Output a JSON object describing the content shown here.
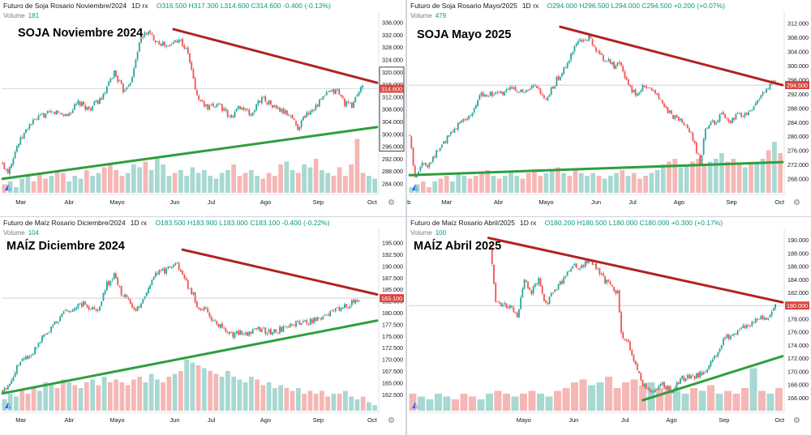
{
  "colors": {
    "up": "#26a69a",
    "down": "#ef5350",
    "vol_up": "#a8d8d2",
    "vol_down": "#f5b7b5",
    "resistance": "#b22222",
    "support": "#2e9e3e",
    "axis_text": "#131722",
    "price_label": "#d9463e",
    "grid": "#f0f3fa"
  },
  "charts": [
    {
      "id": "soja-nov",
      "symbol": "Futuro de Soja Rosario Noviembre/2024",
      "interval": "1D",
      "source": "rx",
      "ohlc": {
        "o": "O316.500",
        "h": "H317.300",
        "l": "L314.600",
        "c": "C314.600",
        "chg": "-0.400 (-0.13%)"
      },
      "volume_label": "Volume",
      "volume_value": "181",
      "annotation": "SOJA Noviembre 2024",
      "chart_data": {
        "type": "candlestick",
        "ylim": [
          281,
          338
        ],
        "yticks": [
          "336.000",
          "332.000",
          "328.000",
          "324.000",
          "320.000",
          "316.000",
          "312.000",
          "308.000",
          "304.000",
          "300.000",
          "296.000",
          "292.000",
          "288.000",
          "284.000"
        ],
        "months": [
          "Mar",
          "Abr",
          "Mayo",
          "Jun",
          "Jul",
          "Ago",
          "Sep",
          "Oct"
        ],
        "last_price": "314.600",
        "last_value": 314.6,
        "boxed_ticks": [
          "320.000",
          "316.000",
          "312.000",
          "308.000",
          "304.000",
          "300.000",
          "296.000"
        ],
        "anchors": [
          [
            0,
            290
          ],
          [
            3,
            288
          ],
          [
            8,
            296
          ],
          [
            15,
            303
          ],
          [
            22,
            306
          ],
          [
            30,
            307
          ],
          [
            36,
            306
          ],
          [
            42,
            310
          ],
          [
            48,
            308
          ],
          [
            56,
            312
          ],
          [
            62,
            320
          ],
          [
            67,
            314
          ],
          [
            72,
            318
          ],
          [
            76,
            330
          ],
          [
            80,
            333
          ],
          [
            86,
            330
          ],
          [
            92,
            328
          ],
          [
            98,
            331
          ],
          [
            103,
            326
          ],
          [
            108,
            312
          ],
          [
            114,
            308
          ],
          [
            120,
            310
          ],
          [
            126,
            305
          ],
          [
            132,
            309
          ],
          [
            138,
            306
          ],
          [
            144,
            312
          ],
          [
            150,
            309
          ],
          [
            156,
            307
          ],
          [
            160,
            306
          ],
          [
            164,
            302
          ],
          [
            168,
            306
          ],
          [
            174,
            309
          ],
          [
            180,
            313
          ],
          [
            186,
            314
          ],
          [
            190,
            310
          ],
          [
            194,
            309
          ],
          [
            197,
            313
          ],
          [
            200,
            315
          ]
        ],
        "volume_heights": [
          0.15,
          0.2,
          0.1,
          0.25,
          0.3,
          0.2,
          0.35,
          0.25,
          0.3,
          0.4,
          0.35,
          0.2,
          0.3,
          0.25,
          0.4,
          0.3,
          0.35,
          0.45,
          0.5,
          0.4,
          0.3,
          0.35,
          0.5,
          0.45,
          0.55,
          0.4,
          0.6,
          0.5,
          0.3,
          0.35,
          0.4,
          0.3,
          0.45,
          0.35,
          0.4,
          0.3,
          0.25,
          0.35,
          0.4,
          0.5,
          0.3,
          0.35,
          0.4,
          0.3,
          0.25,
          0.35,
          0.3,
          0.5,
          0.55,
          0.4,
          0.35,
          0.5,
          0.45,
          0.6,
          0.4,
          0.35,
          0.3,
          0.45,
          0.3,
          0.5,
          0.95,
          0.35,
          0.3,
          0.25
        ],
        "resistance": [
          [
            95,
            333.8
          ],
          [
            208,
            316.5
          ]
        ],
        "support": [
          [
            0,
            285.5
          ],
          [
            208,
            302.2
          ]
        ],
        "months_pos": [
          0.05,
          0.18,
          0.3,
          0.46,
          0.56,
          0.7,
          0.84,
          0.985
        ]
      }
    },
    {
      "id": "soja-may",
      "symbol": "Futuro de Soja Rosario Mayo/2025",
      "interval": "1D",
      "source": "rx",
      "ohlc": {
        "o": "O294.000",
        "h": "H296.500",
        "l": "L294.000",
        "c": "C294.500",
        "chg": "+0.200 (+0.07%)"
      },
      "volume_label": "Volume",
      "volume_value": "479",
      "annotation": "SOJA Mayo 2025",
      "chart_data": {
        "type": "candlestick",
        "ylim": [
          264,
          314
        ],
        "yticks": [
          "312.000",
          "308.000",
          "304.000",
          "300.000",
          "296.000",
          "292.000",
          "288.000",
          "284.000",
          "280.000",
          "276.000",
          "272.000",
          "268.000"
        ],
        "months": [
          "eb",
          "Mar",
          "Abr",
          "Mayo",
          "Jun",
          "Jul",
          "Ago",
          "Sep",
          "Oct"
        ],
        "last_price": "294.500",
        "last_value": 294.5,
        "boxed_ticks": [],
        "anchors": [
          [
            0,
            280
          ],
          [
            3,
            268
          ],
          [
            6,
            272
          ],
          [
            10,
            272
          ],
          [
            16,
            276
          ],
          [
            22,
            280
          ],
          [
            28,
            284
          ],
          [
            34,
            286
          ],
          [
            40,
            292
          ],
          [
            46,
            292
          ],
          [
            52,
            292
          ],
          [
            58,
            294
          ],
          [
            64,
            292
          ],
          [
            70,
            294
          ],
          [
            76,
            290
          ],
          [
            82,
            296
          ],
          [
            88,
            300
          ],
          [
            92,
            306
          ],
          [
            96,
            307
          ],
          [
            100,
            308
          ],
          [
            104,
            304
          ],
          [
            108,
            302
          ],
          [
            114,
            300
          ],
          [
            118,
            300
          ],
          [
            122,
            294
          ],
          [
            126,
            292
          ],
          [
            130,
            294
          ],
          [
            134,
            294
          ],
          [
            140,
            290
          ],
          [
            146,
            286
          ],
          [
            152,
            284
          ],
          [
            156,
            282
          ],
          [
            160,
            276
          ],
          [
            162,
            272
          ],
          [
            165,
            282
          ],
          [
            170,
            284
          ],
          [
            174,
            286
          ],
          [
            178,
            284
          ],
          [
            182,
            286
          ],
          [
            188,
            286
          ],
          [
            194,
            290
          ],
          [
            200,
            294
          ],
          [
            204,
            296
          ]
        ],
        "volume_heights": [
          0.1,
          0.15,
          0.2,
          0.1,
          0.2,
          0.25,
          0.3,
          0.2,
          0.35,
          0.3,
          0.25,
          0.3,
          0.35,
          0.4,
          0.3,
          0.25,
          0.3,
          0.35,
          0.3,
          0.25,
          0.35,
          0.4,
          0.3,
          0.35,
          0.4,
          0.45,
          0.35,
          0.3,
          0.4,
          0.35,
          0.3,
          0.35,
          0.3,
          0.25,
          0.3,
          0.35,
          0.4,
          0.3,
          0.35,
          0.25,
          0.3,
          0.35,
          0.4,
          0.5,
          0.55,
          0.6,
          0.45,
          0.5,
          0.55,
          0.6,
          0.5,
          0.55,
          0.6,
          0.7,
          0.55,
          0.6,
          0.5,
          0.45,
          0.5,
          0.55,
          0.6,
          0.75,
          0.9,
          0.7
        ],
        "resistance": [
          [
            84,
            311
          ],
          [
            208,
            294.5
          ]
        ],
        "support": [
          [
            0,
            269
          ],
          [
            208,
            272.7
          ]
        ],
        "months_pos": [
          0.0,
          0.1,
          0.24,
          0.36,
          0.5,
          0.6,
          0.72,
          0.86,
          0.99
        ]
      }
    },
    {
      "id": "maiz-dic",
      "symbol": "Futuro de Maíz Rosario Diciembre/2024",
      "interval": "1D",
      "source": "rx",
      "ohlc": {
        "o": "O183.500",
        "h": "H183.900",
        "l": "L183.000",
        "c": "C183.100",
        "chg": "-0.400 (-0.22%)"
      },
      "volume_label": "Volume",
      "volume_value": "104",
      "annotation": "MAÍZ Diciembre 2024",
      "chart_data": {
        "type": "candlestick",
        "ylim": [
          159,
          197
        ],
        "yticks": [
          "195.000",
          "192.500",
          "190.000",
          "187.500",
          "185.000",
          "182.500",
          "180.000",
          "177.500",
          "175.000",
          "172.500",
          "170.000",
          "167.500",
          "165.000",
          "162.500"
        ],
        "months": [
          "Mar",
          "Abr",
          "Mayo",
          "Jun",
          "Jul",
          "Ago",
          "Sep",
          "Oct"
        ],
        "last_price": "183.100",
        "last_value": 183.1,
        "boxed_ticks": [],
        "anchors": [
          [
            0,
            163
          ],
          [
            4,
            165
          ],
          [
            10,
            170
          ],
          [
            16,
            171
          ],
          [
            22,
            175
          ],
          [
            28,
            177
          ],
          [
            34,
            180
          ],
          [
            40,
            181
          ],
          [
            46,
            182
          ],
          [
            52,
            180
          ],
          [
            58,
            186
          ],
          [
            62,
            188
          ],
          [
            66,
            184
          ],
          [
            70,
            183
          ],
          [
            74,
            180
          ],
          [
            78,
            183
          ],
          [
            84,
            188
          ],
          [
            90,
            189
          ],
          [
            96,
            191
          ],
          [
            100,
            188
          ],
          [
            104,
            185
          ],
          [
            106,
            184
          ],
          [
            108,
            181
          ],
          [
            112,
            181
          ],
          [
            118,
            178
          ],
          [
            124,
            176
          ],
          [
            128,
            175
          ],
          [
            132,
            176
          ],
          [
            136,
            175
          ],
          [
            140,
            177
          ],
          [
            146,
            176
          ],
          [
            152,
            176
          ],
          [
            158,
            177
          ],
          [
            164,
            178
          ],
          [
            170,
            178
          ],
          [
            176,
            179
          ],
          [
            182,
            180
          ],
          [
            188,
            181
          ],
          [
            194,
            182
          ],
          [
            198,
            183
          ]
        ],
        "volume_heights": [
          0.2,
          0.3,
          0.25,
          0.35,
          0.3,
          0.4,
          0.35,
          0.5,
          0.45,
          0.4,
          0.55,
          0.5,
          0.45,
          0.4,
          0.5,
          0.55,
          0.45,
          0.6,
          0.5,
          0.55,
          0.5,
          0.45,
          0.55,
          0.6,
          0.5,
          0.65,
          0.55,
          0.5,
          0.6,
          0.65,
          0.7,
          0.9,
          0.85,
          0.8,
          0.75,
          0.7,
          0.65,
          0.6,
          0.7,
          0.6,
          0.55,
          0.5,
          0.6,
          0.55,
          0.45,
          0.5,
          0.4,
          0.45,
          0.4,
          0.35,
          0.4,
          0.3,
          0.35,
          0.3,
          0.35,
          0.25,
          0.3,
          0.3,
          0.35,
          0.25,
          0.2,
          0.25,
          0.15,
          0.1
        ],
        "resistance": [
          [
            100,
            193.5
          ],
          [
            208,
            183.9
          ]
        ],
        "support": [
          [
            0,
            162.7
          ],
          [
            208,
            178.3
          ]
        ],
        "months_pos": [
          0.05,
          0.18,
          0.3,
          0.46,
          0.56,
          0.7,
          0.84,
          0.985
        ]
      }
    },
    {
      "id": "maiz-abr",
      "symbol": "Futuro de Maíz Rosario Abril/2025",
      "interval": "1D",
      "source": "rx",
      "ohlc": {
        "o": "O180.200",
        "h": "H180.500",
        "l": "L180.000",
        "c": "C180.000",
        "chg": "+0.300 (+0.17%)"
      },
      "volume_label": "Volume",
      "volume_value": "100",
      "annotation": "MAÍZ Abril 2025",
      "chart_data": {
        "type": "candlestick",
        "ylim": [
          164,
          191
        ],
        "yticks": [
          "190.000",
          "188.000",
          "186.000",
          "184.000",
          "182.000",
          "180.000",
          "178.000",
          "176.000",
          "174.000",
          "172.000",
          "170.000",
          "168.000",
          "166.000"
        ],
        "months": [
          "Mayo",
          "Jun",
          "Jul",
          "Ago",
          "Sep",
          "Oct"
        ],
        "last_price": "180.000",
        "last_value": 180.0,
        "boxed_ticks": [],
        "anchors": [
          [
            45,
            189
          ],
          [
            48,
            181
          ],
          [
            52,
            180
          ],
          [
            56,
            180
          ],
          [
            60,
            178
          ],
          [
            64,
            184
          ],
          [
            68,
            182
          ],
          [
            72,
            184
          ],
          [
            76,
            180
          ],
          [
            80,
            182
          ],
          [
            86,
            184
          ],
          [
            90,
            186
          ],
          [
            96,
            186
          ],
          [
            100,
            187
          ],
          [
            104,
            186
          ],
          [
            108,
            184
          ],
          [
            112,
            183
          ],
          [
            116,
            182
          ],
          [
            118,
            176
          ],
          [
            122,
            174
          ],
          [
            126,
            171
          ],
          [
            130,
            168
          ],
          [
            134,
            167
          ],
          [
            140,
            168
          ],
          [
            146,
            167
          ],
          [
            152,
            169
          ],
          [
            158,
            169
          ],
          [
            164,
            170
          ],
          [
            170,
            172
          ],
          [
            176,
            175
          ],
          [
            182,
            176
          ],
          [
            188,
            177
          ],
          [
            194,
            178
          ],
          [
            200,
            178
          ],
          [
            204,
            180
          ]
        ],
        "volume_heights": [
          0.3,
          0.25,
          0.2,
          0.3,
          0.25,
          0.2,
          0.3,
          0.25,
          0.2,
          0.3,
          0.35,
          0.3,
          0.25,
          0.3,
          0.35,
          0.3,
          0.25,
          0.35,
          0.4,
          0.5,
          0.55,
          0.45,
          0.5,
          0.6,
          0.4,
          0.5,
          0.55,
          0.45,
          0.5,
          0.4,
          0.45,
          0.35,
          0.3,
          0.4,
          0.35,
          0.45,
          0.3,
          0.35,
          0.3,
          0.4,
          0.75,
          0.35,
          0.3,
          0.4
        ],
        "resistance": [
          [
            44,
            190.3
          ],
          [
            208,
            180.5
          ]
        ],
        "support": [
          [
            130,
            165.6
          ],
          [
            208,
            172.3
          ]
        ],
        "months_pos": [
          0.3,
          0.44,
          0.58,
          0.7,
          0.84,
          0.99
        ]
      }
    }
  ]
}
